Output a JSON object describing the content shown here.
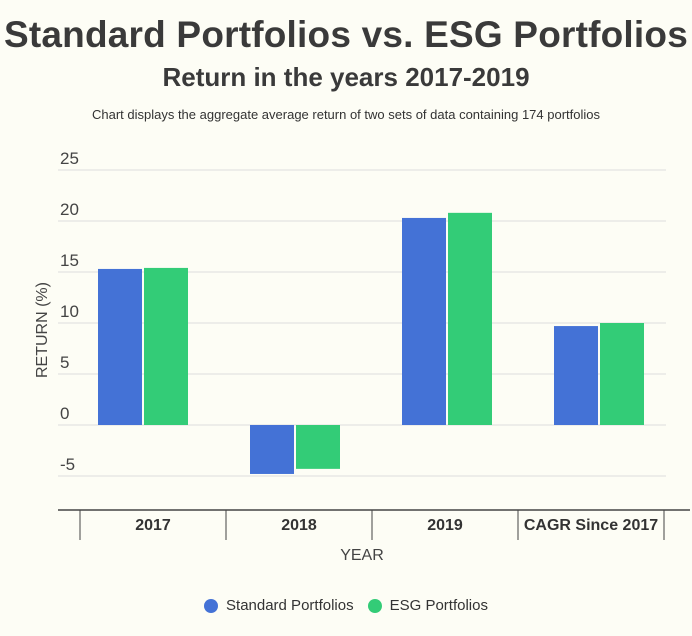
{
  "title": "Standard Portfolios vs. ESG Portfolios",
  "subtitle": "Return in the years 2017-2019",
  "note": "Chart displays the aggregate average return of two sets of data containing 174 portfolios",
  "colors": {
    "standard": "#4472d6",
    "esg": "#33cc77",
    "grid": "#dddddd",
    "axis": "#444444"
  },
  "chart_data": {
    "type": "bar",
    "categories": [
      "2017",
      "2018",
      "2019",
      "CAGR Since 2017"
    ],
    "series": [
      {
        "name": "Standard Portfolios",
        "values": [
          15.3,
          -4.8,
          20.3,
          9.7
        ]
      },
      {
        "name": "ESG Portfolios",
        "values": [
          15.4,
          -4.3,
          20.8,
          10.0
        ]
      }
    ],
    "xlabel": "YEAR",
    "ylabel": "RETURN (%)",
    "yticks": [
      "25",
      "20",
      "15",
      "10",
      "5",
      "0",
      "-5"
    ],
    "ylim": [
      -8,
      25
    ],
    "grid": true,
    "legend_position": "bottom"
  }
}
